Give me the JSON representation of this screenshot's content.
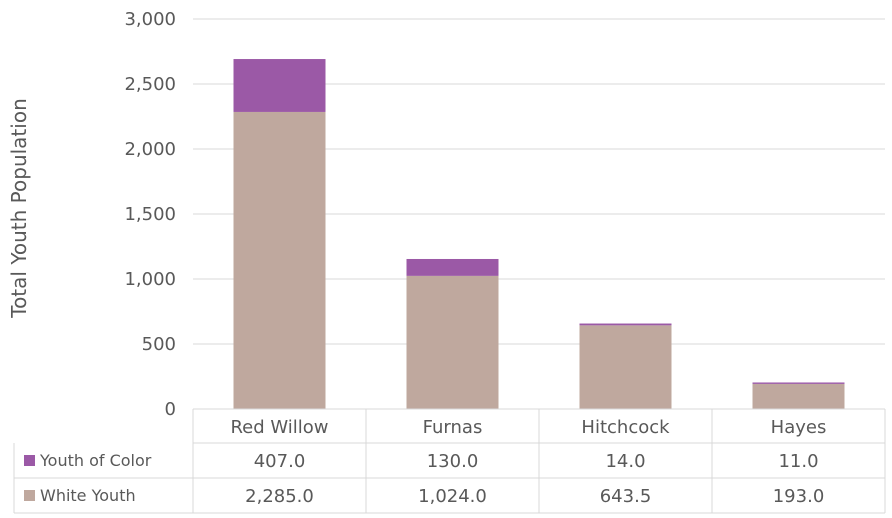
{
  "chart_data": {
    "type": "bar",
    "stacked": true,
    "ylabel": "Total Youth Population",
    "ylim": [
      0,
      3000
    ],
    "yticks": [
      "0",
      "500",
      "1,000",
      "1,500",
      "2,000",
      "2,500",
      "3,000"
    ],
    "ytick_values": [
      0,
      500,
      1000,
      1500,
      2000,
      2500,
      3000
    ],
    "grid": true,
    "categories": [
      "Red Willow",
      "Furnas",
      "Hitchcock",
      "Hayes"
    ],
    "series": [
      {
        "name": "White Youth",
        "color": "#bfa89e",
        "values": [
          2285.0,
          1024.0,
          643.5,
          193.0
        ],
        "labels": [
          "2,285.0",
          "1,024.0",
          "643.5",
          "193.0"
        ]
      },
      {
        "name": "Youth of Color",
        "color": "#9b59a6",
        "values": [
          407.0,
          130.0,
          14.0,
          11.0
        ],
        "labels": [
          "407.0",
          "130.0",
          "14.0",
          "11.0"
        ]
      }
    ],
    "legend": "data-table"
  }
}
